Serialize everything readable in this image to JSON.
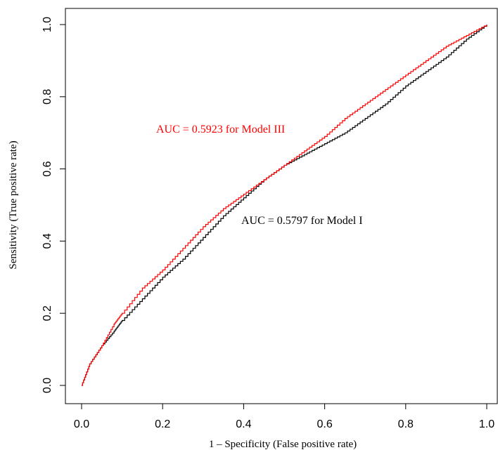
{
  "chart_data": {
    "type": "line",
    "title": "",
    "xlabel": "1 – Specificity (False positive rate)",
    "ylabel": "Sensitivity (True positive rate)",
    "xlim": [
      0.0,
      1.0
    ],
    "ylim": [
      0.0,
      1.0
    ],
    "xticks": [
      "0.0",
      "0.2",
      "0.4",
      "0.6",
      "0.8",
      "1.0"
    ],
    "yticks": [
      "0.0",
      "0.2",
      "0.4",
      "0.6",
      "0.8",
      "1.0"
    ],
    "grid": false,
    "series": [
      {
        "name": "Model I",
        "color": "#000000",
        "x": [
          0.0,
          0.02,
          0.05,
          0.08,
          0.1,
          0.15,
          0.2,
          0.25,
          0.3,
          0.35,
          0.4,
          0.45,
          0.5,
          0.55,
          0.6,
          0.65,
          0.7,
          0.75,
          0.8,
          0.85,
          0.9,
          0.95,
          1.0
        ],
        "y": [
          0.0,
          0.06,
          0.11,
          0.15,
          0.18,
          0.24,
          0.3,
          0.35,
          0.41,
          0.47,
          0.52,
          0.57,
          0.61,
          0.64,
          0.67,
          0.7,
          0.74,
          0.78,
          0.83,
          0.87,
          0.91,
          0.96,
          1.0
        ]
      },
      {
        "name": "Model III",
        "color": "#ff0000",
        "x": [
          0.0,
          0.02,
          0.05,
          0.08,
          0.1,
          0.15,
          0.2,
          0.25,
          0.3,
          0.35,
          0.4,
          0.45,
          0.5,
          0.55,
          0.6,
          0.65,
          0.7,
          0.75,
          0.8,
          0.85,
          0.9,
          0.95,
          1.0
        ],
        "y": [
          0.0,
          0.06,
          0.11,
          0.17,
          0.2,
          0.27,
          0.32,
          0.38,
          0.44,
          0.49,
          0.53,
          0.57,
          0.61,
          0.65,
          0.69,
          0.74,
          0.78,
          0.82,
          0.86,
          0.9,
          0.94,
          0.97,
          1.0
        ]
      }
    ],
    "annotations": [
      {
        "text": "AUC = 0.5923 for Model III",
        "color": "#ff0000"
      },
      {
        "text": "AUC = 0.5797 for Model I",
        "color": "#000000"
      }
    ]
  }
}
